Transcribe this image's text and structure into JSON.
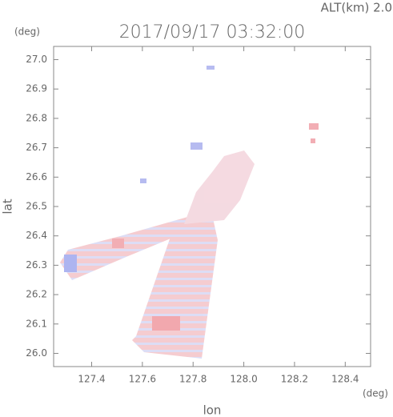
{
  "chart_data": {
    "type": "map",
    "title": "2017/09/17 03:32:00",
    "altitude_label": "ALT(km)  2.0",
    "x_label": "lon",
    "y_label": "lat",
    "x_unit": "(deg)",
    "y_unit": "(deg)",
    "xlim": [
      127.25,
      128.5
    ],
    "ylim": [
      25.955,
      27.045
    ],
    "xticks": [
      127.4,
      127.6,
      127.8,
      {
        "value": 128.0,
        "label": "128.0"
      },
      128.2,
      128.4
    ],
    "yticks": [
      {
        "value": 26.0,
        "label": "26.0"
      },
      26.1,
      26.2,
      26.3,
      26.4,
      26.5,
      26.6,
      26.7,
      26.8,
      26.9,
      {
        "value": 27.0,
        "label": "27.0"
      }
    ]
  }
}
